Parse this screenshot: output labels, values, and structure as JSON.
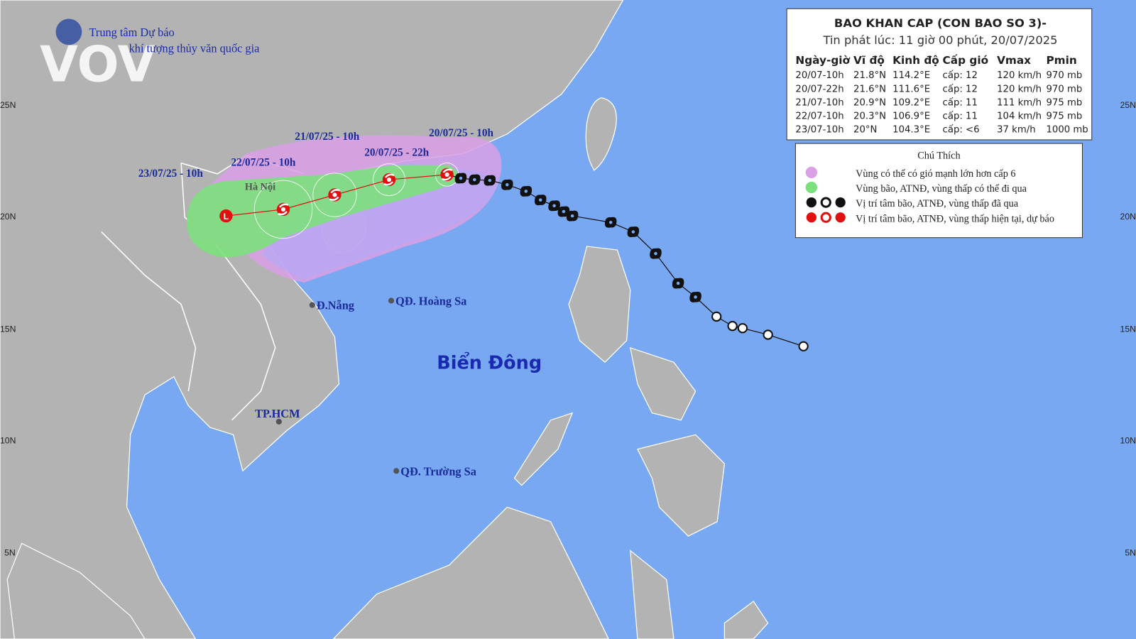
{
  "logo": {
    "brand": "VOV",
    "org_line1": "Trung tâm Dự báo",
    "org_line2": "khí tượng thủy văn quốc gia"
  },
  "info_box": {
    "title": "BAO KHAN CAP (CON BAO SO 3)-",
    "issued": "Tin phát lúc: 11 giờ 00 phút, 20/07/2025",
    "columns": [
      "Ngày-giờ",
      "Vĩ độ",
      "Kinh độ",
      "Cấp gió",
      "Vmax",
      "Pmin"
    ],
    "rows": [
      [
        "20/07-10h",
        "21.8°N",
        "114.2°E",
        "cấp: 12",
        "120 km/h",
        "970 mb"
      ],
      [
        "20/07-22h",
        "21.6°N",
        "111.6°E",
        "cấp: 12",
        "120 km/h",
        "970 mb"
      ],
      [
        "21/07-10h",
        "20.9°N",
        "109.2°E",
        "cấp: 11",
        "111 km/h",
        "975 mb"
      ],
      [
        "22/07-10h",
        "20.3°N",
        "106.9°E",
        "cấp: 11",
        "104 km/h",
        "975 mb"
      ],
      [
        "23/07-10h",
        "20°N",
        "104.3°E",
        "cấp: <6",
        "37 km/h",
        "1000 mb"
      ]
    ]
  },
  "legend": {
    "title": "Chú Thích",
    "items": [
      "Vùng có thể có gió mạnh lớn hơn cấp 6",
      "Vùng bão, ATNĐ, vùng thấp có thể đi qua",
      "Vị trí tâm bão, ATNĐ, vùng thấp đã qua",
      "Vị trí tâm bão, ATNĐ, vùng thấp hiện tại, dự báo"
    ]
  },
  "track_labels": [
    "20/07/25 - 10h",
    "20/07/25 - 22h",
    "21/07/25 - 10h",
    "22/07/25 - 10h",
    "23/07/25 - 10h"
  ],
  "map_labels": [
    "Hà Nội",
    "Đ.Nẵng",
    "QĐ. Hoàng Sa",
    "Biển Đông",
    "TP.HCM",
    "QĐ. Trường Sa"
  ],
  "latitude_labels": [
    "25N",
    "20N",
    "15N",
    "10N",
    "5N"
  ]
}
